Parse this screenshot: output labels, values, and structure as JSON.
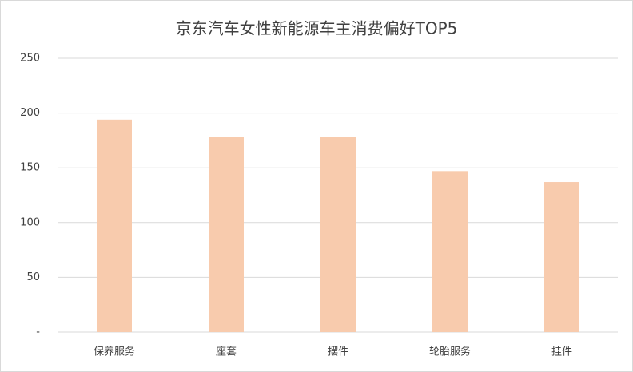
{
  "chart_data": {
    "type": "bar",
    "title": "京东汽车女性新能源车主消费偏好TOP5",
    "categories": [
      "保养服务",
      "座套",
      "摆件",
      "轮胎服务",
      "挂件"
    ],
    "values": [
      194,
      178,
      178,
      147,
      137
    ],
    "color": "#f8cbad",
    "ylim": [
      0,
      250
    ],
    "yticks": [
      {
        "value": 0,
        "label": "-"
      },
      50,
      100,
      150,
      200,
      250
    ],
    "grid": true
  }
}
